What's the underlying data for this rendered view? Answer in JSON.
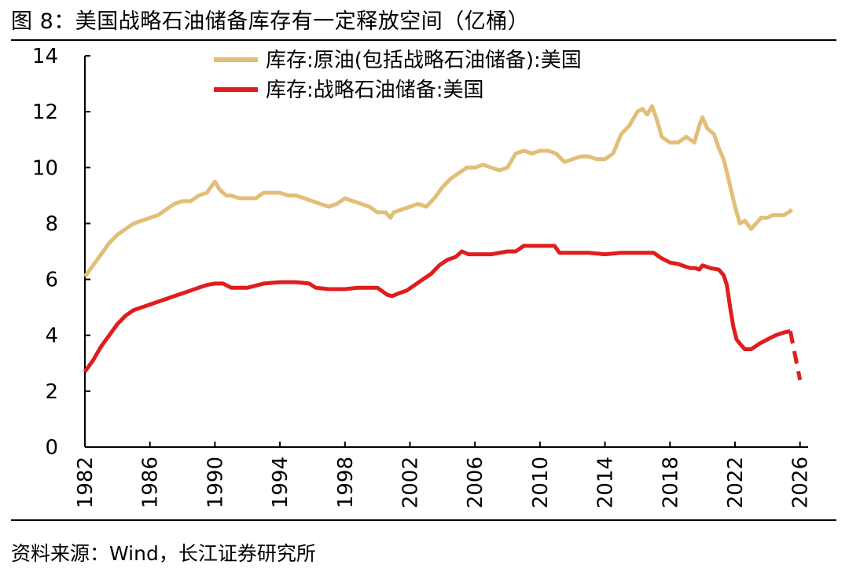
{
  "figure": {
    "title": "图 8：美国战略石油储备库存有一定释放空间（亿桶）",
    "source": "资料来源：Wind，长江证券研究所"
  },
  "chart_data": {
    "type": "line",
    "title": "",
    "xlabel": "",
    "ylabel": "",
    "xlim": [
      1982,
      2026.5
    ],
    "ylim": [
      0,
      14
    ],
    "grid": false,
    "legend_position": "top",
    "x_ticks": [
      "1982",
      "1986",
      "1990",
      "1994",
      "1998",
      "2002",
      "2006",
      "2010",
      "2014",
      "2018",
      "2022",
      "2026"
    ],
    "y_ticks": [
      "0",
      "2",
      "4",
      "6",
      "8",
      "10",
      "12",
      "14"
    ],
    "series": [
      {
        "name": "库存:原油(包括战略石油储备):美国",
        "color": "#E2BE79",
        "style": "solid",
        "x": [
          1982.0,
          1982.5,
          1983.0,
          1983.5,
          1984.0,
          1984.5,
          1985.0,
          1985.5,
          1986.0,
          1986.5,
          1987.0,
          1987.5,
          1988.0,
          1988.5,
          1989.0,
          1989.5,
          1990.0,
          1990.3,
          1990.7,
          1991.0,
          1991.5,
          1992.0,
          1992.5,
          1993.0,
          1993.5,
          1994.0,
          1994.5,
          1995.0,
          1995.5,
          1996.0,
          1996.5,
          1997.0,
          1997.5,
          1998.0,
          1998.5,
          1999.0,
          1999.5,
          2000.0,
          2000.5,
          2000.8,
          2001.0,
          2001.5,
          2002.0,
          2002.5,
          2003.0,
          2003.5,
          2004.0,
          2004.5,
          2005.0,
          2005.5,
          2006.0,
          2006.5,
          2007.0,
          2007.5,
          2008.0,
          2008.5,
          2009.0,
          2009.5,
          2010.0,
          2010.5,
          2011.0,
          2011.5,
          2012.0,
          2012.5,
          2013.0,
          2013.5,
          2014.0,
          2014.5,
          2015.0,
          2015.5,
          2016.0,
          2016.3,
          2016.6,
          2016.9,
          2017.2,
          2017.5,
          2018.0,
          2018.5,
          2019.0,
          2019.5,
          2019.8,
          2020.0,
          2020.3,
          2020.7,
          2021.0,
          2021.3,
          2021.6,
          2022.0,
          2022.3,
          2022.6,
          2023.0,
          2023.3,
          2023.6,
          2024.0,
          2024.3,
          2024.6,
          2025.0,
          2025.3,
          2025.5
        ],
        "y": [
          6.1,
          6.5,
          6.9,
          7.3,
          7.6,
          7.8,
          8.0,
          8.1,
          8.2,
          8.3,
          8.5,
          8.7,
          8.8,
          8.8,
          9.0,
          9.1,
          9.5,
          9.2,
          9.0,
          9.0,
          8.9,
          8.9,
          8.9,
          9.1,
          9.1,
          9.1,
          9.0,
          9.0,
          8.9,
          8.8,
          8.7,
          8.6,
          8.7,
          8.9,
          8.8,
          8.7,
          8.6,
          8.4,
          8.4,
          8.2,
          8.4,
          8.5,
          8.6,
          8.7,
          8.6,
          8.9,
          9.3,
          9.6,
          9.8,
          10.0,
          10.0,
          10.1,
          10.0,
          9.9,
          10.0,
          10.5,
          10.6,
          10.5,
          10.6,
          10.6,
          10.5,
          10.2,
          10.3,
          10.4,
          10.4,
          10.3,
          10.3,
          10.5,
          11.2,
          11.5,
          12.0,
          12.1,
          11.9,
          12.2,
          11.7,
          11.1,
          10.9,
          10.9,
          11.1,
          10.9,
          11.5,
          11.8,
          11.4,
          11.2,
          10.7,
          10.3,
          9.6,
          8.6,
          8.0,
          8.1,
          7.8,
          8.0,
          8.2,
          8.2,
          8.3,
          8.3,
          8.3,
          8.4,
          8.5
        ]
      },
      {
        "name": "库存:战略石油储备:美国",
        "color": "#E01D1D",
        "style": "solid",
        "x": [
          1982.0,
          1982.5,
          1983.0,
          1983.5,
          1984.0,
          1984.5,
          1985.0,
          1985.5,
          1986.0,
          1986.5,
          1987.0,
          1987.5,
          1988.0,
          1988.5,
          1989.0,
          1989.5,
          1990.0,
          1990.5,
          1991.0,
          1992.0,
          1993.0,
          1994.0,
          1995.0,
          1995.8,
          1996.2,
          1997.0,
          1998.0,
          1998.8,
          1999.5,
          2000.0,
          2000.6,
          2000.9,
          2001.3,
          2001.8,
          2002.3,
          2002.8,
          2003.3,
          2003.8,
          2004.3,
          2004.8,
          2005.2,
          2005.6,
          2006.0,
          2007.0,
          2008.0,
          2008.5,
          2009.0,
          2010.0,
          2010.9,
          2011.2,
          2012.0,
          2013.0,
          2014.0,
          2015.0,
          2016.0,
          2017.0,
          2017.5,
          2018.0,
          2018.5,
          2019.0,
          2019.3,
          2019.6,
          2019.8,
          2020.0,
          2020.5,
          2021.0,
          2021.3,
          2021.5,
          2021.7,
          2021.9,
          2022.1,
          2022.3,
          2022.6,
          2023.0,
          2023.5,
          2024.0,
          2024.5,
          2025.0,
          2025.4
        ],
        "y": [
          2.7,
          3.1,
          3.6,
          4.0,
          4.4,
          4.7,
          4.9,
          5.0,
          5.1,
          5.2,
          5.3,
          5.4,
          5.5,
          5.6,
          5.7,
          5.8,
          5.85,
          5.85,
          5.7,
          5.7,
          5.85,
          5.9,
          5.9,
          5.85,
          5.7,
          5.65,
          5.65,
          5.7,
          5.7,
          5.7,
          5.45,
          5.4,
          5.5,
          5.6,
          5.8,
          6.0,
          6.2,
          6.5,
          6.7,
          6.8,
          7.0,
          6.9,
          6.9,
          6.9,
          7.0,
          7.0,
          7.2,
          7.2,
          7.2,
          6.95,
          6.95,
          6.95,
          6.9,
          6.95,
          6.95,
          6.95,
          6.75,
          6.6,
          6.55,
          6.45,
          6.4,
          6.4,
          6.35,
          6.5,
          6.4,
          6.35,
          6.15,
          5.8,
          5.0,
          4.3,
          3.85,
          3.7,
          3.5,
          3.5,
          3.7,
          3.85,
          4.0,
          4.1,
          4.15
        ]
      },
      {
        "name": "",
        "color": "#E01D1D",
        "style": "dashed",
        "x": [
          2025.4,
          2026.0
        ],
        "y": [
          4.15,
          2.4
        ]
      }
    ]
  }
}
